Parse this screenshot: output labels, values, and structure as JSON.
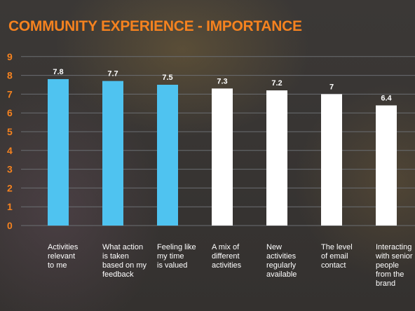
{
  "chart_data": {
    "type": "bar",
    "title": "COMMUNITY EXPERIENCE - IMPORTANCE",
    "categories": [
      "Activities\nrelevant\nto me",
      "What action\nis taken\nbased on my\nfeedback",
      "Feeling like\nmy time\nis valued",
      "A mix of\ndifferent\nactivities",
      "New\nactivities\nregularly\navailable",
      "The level\nof email\ncontact",
      "Interacting\nwith senior\npeople\nfrom the\nbrand"
    ],
    "values": [
      7.8,
      7.7,
      7.5,
      7.3,
      7.2,
      7,
      6.4
    ],
    "value_labels": [
      "7.8",
      "7.7",
      "7.5",
      "7.3",
      "7.2",
      "7",
      "6.4"
    ],
    "bar_colors": [
      "#4fc3f0",
      "#4fc3f0",
      "#4fc3f0",
      "#ffffff",
      "#ffffff",
      "#ffffff",
      "#ffffff"
    ],
    "yticks": [
      "0",
      "1",
      "2",
      "3",
      "4",
      "5",
      "6",
      "7",
      "8",
      "9"
    ],
    "ylim": [
      0,
      9
    ],
    "grid": true,
    "colors": {
      "title": "#f5821f",
      "axis_labels": "#f5821f",
      "gridline": "#6b6e72",
      "value_label": "#ffffff",
      "category_label": "#ffffff"
    }
  }
}
